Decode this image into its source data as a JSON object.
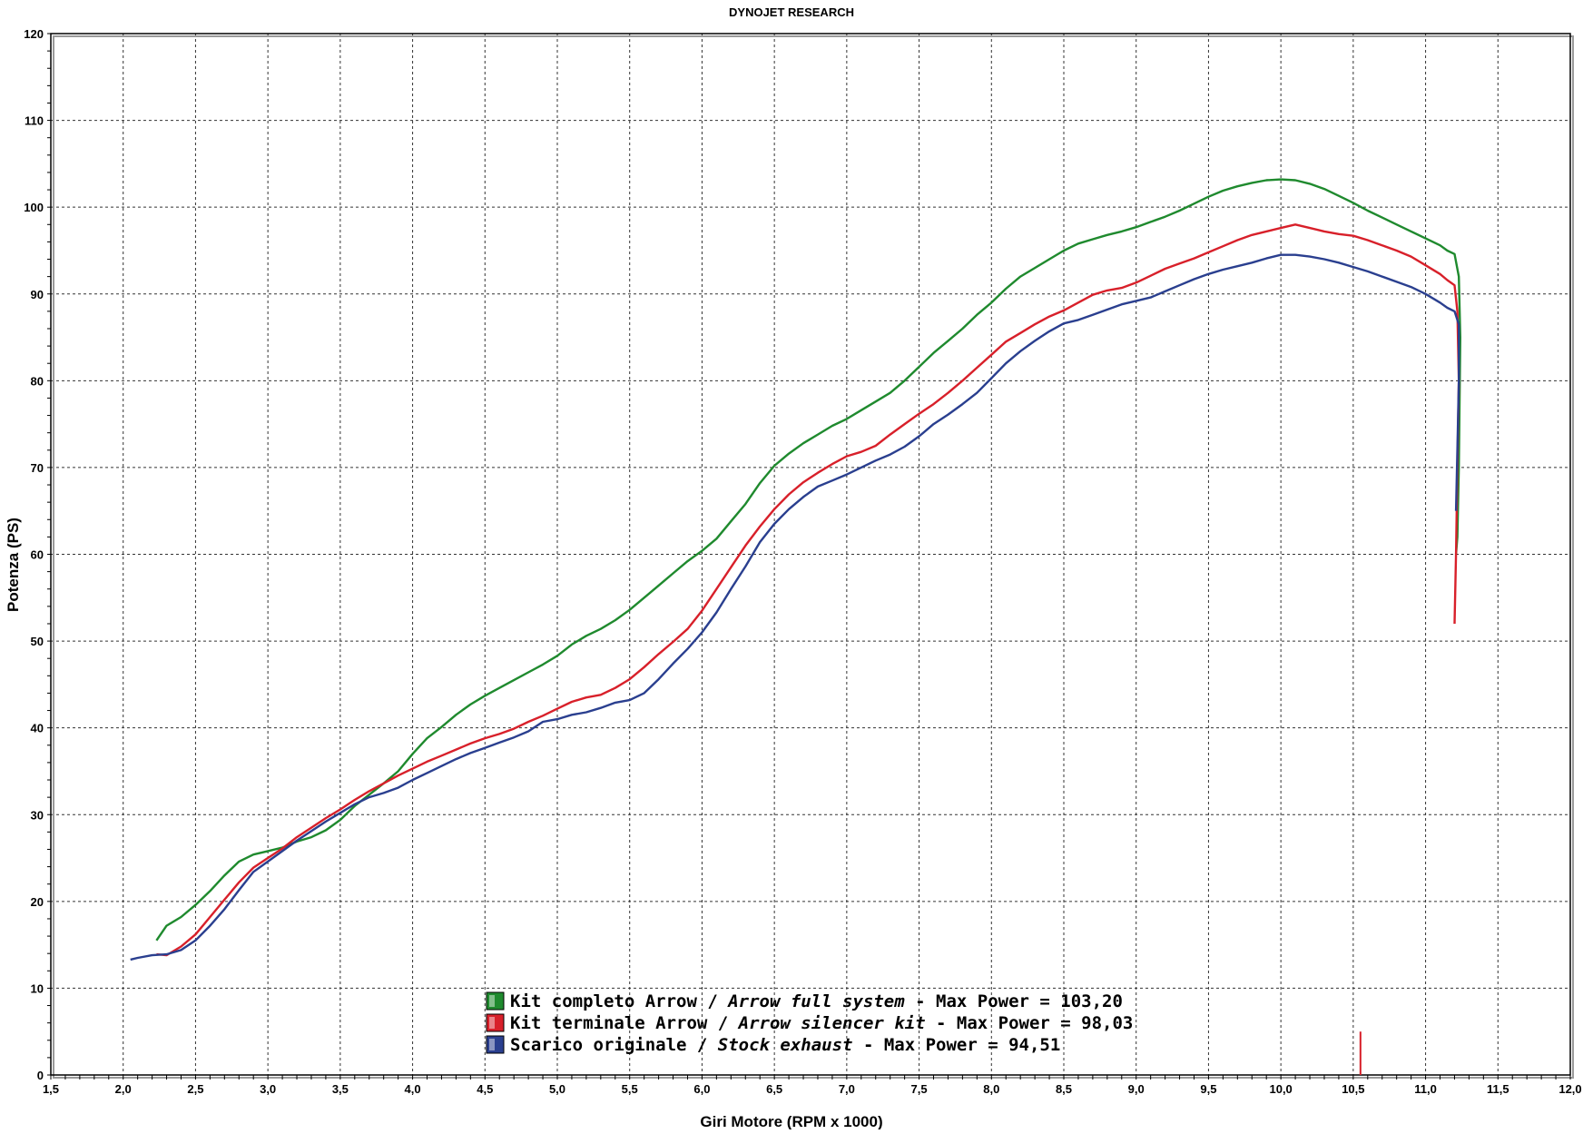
{
  "chart_data": {
    "type": "line",
    "title": "DYNOJET RESEARCH",
    "xlabel": "Giri Motore (RPM x 1000)",
    "ylabel": "Potenza (PS)",
    "xlim": [
      1.5,
      12.0
    ],
    "ylim": [
      0,
      120
    ],
    "x_ticks": [
      "1,5",
      "2,0",
      "2,5",
      "3,0",
      "3,5",
      "4,0",
      "4,5",
      "5,0",
      "5,5",
      "6,0",
      "6,5",
      "7,0",
      "7,5",
      "8,0",
      "8,5",
      "9,0",
      "9,5",
      "10,0",
      "10,5",
      "11,0",
      "11,5",
      "12,0"
    ],
    "y_ticks": [
      "0",
      "10",
      "20",
      "30",
      "40",
      "50",
      "60",
      "70",
      "80",
      "90",
      "100",
      "110",
      "120"
    ],
    "grid": true,
    "legend_position": "bottom-center",
    "series": [
      {
        "name": "Kit completo Arrow / Arrow full system - Max Power = 103,20",
        "color": "#1f8a2e",
        "legend_parts": [
          "Kit completo Arrow / ",
          "Arrow full system",
          " - Max Power = 103,20"
        ],
        "points": [
          [
            2.23,
            15.5
          ],
          [
            2.3,
            17.2
          ],
          [
            2.4,
            18.2
          ],
          [
            2.5,
            19.6
          ],
          [
            2.6,
            21.2
          ],
          [
            2.7,
            23.0
          ],
          [
            2.8,
            24.6
          ],
          [
            2.9,
            25.4
          ],
          [
            3.0,
            25.8
          ],
          [
            3.1,
            26.2
          ],
          [
            3.2,
            26.9
          ],
          [
            3.3,
            27.4
          ],
          [
            3.4,
            28.2
          ],
          [
            3.5,
            29.4
          ],
          [
            3.6,
            31.0
          ],
          [
            3.7,
            32.3
          ],
          [
            3.8,
            33.6
          ],
          [
            3.9,
            35.0
          ],
          [
            4.0,
            37.0
          ],
          [
            4.1,
            38.8
          ],
          [
            4.2,
            40.1
          ],
          [
            4.3,
            41.5
          ],
          [
            4.4,
            42.7
          ],
          [
            4.5,
            43.7
          ],
          [
            4.6,
            44.6
          ],
          [
            4.7,
            45.5
          ],
          [
            4.8,
            46.4
          ],
          [
            4.9,
            47.3
          ],
          [
            5.0,
            48.3
          ],
          [
            5.1,
            49.6
          ],
          [
            5.2,
            50.6
          ],
          [
            5.3,
            51.4
          ],
          [
            5.4,
            52.4
          ],
          [
            5.5,
            53.6
          ],
          [
            5.6,
            55.0
          ],
          [
            5.7,
            56.4
          ],
          [
            5.8,
            57.8
          ],
          [
            5.9,
            59.2
          ],
          [
            6.0,
            60.4
          ],
          [
            6.1,
            61.8
          ],
          [
            6.2,
            63.8
          ],
          [
            6.3,
            65.8
          ],
          [
            6.4,
            68.2
          ],
          [
            6.5,
            70.2
          ],
          [
            6.6,
            71.6
          ],
          [
            6.7,
            72.8
          ],
          [
            6.8,
            73.8
          ],
          [
            6.9,
            74.8
          ],
          [
            7.0,
            75.6
          ],
          [
            7.1,
            76.6
          ],
          [
            7.2,
            77.6
          ],
          [
            7.3,
            78.6
          ],
          [
            7.4,
            80.0
          ],
          [
            7.5,
            81.6
          ],
          [
            7.6,
            83.2
          ],
          [
            7.7,
            84.6
          ],
          [
            7.8,
            86.0
          ],
          [
            7.9,
            87.6
          ],
          [
            8.0,
            89.0
          ],
          [
            8.1,
            90.6
          ],
          [
            8.2,
            92.0
          ],
          [
            8.3,
            93.0
          ],
          [
            8.4,
            94.0
          ],
          [
            8.5,
            95.0
          ],
          [
            8.6,
            95.8
          ],
          [
            8.7,
            96.3
          ],
          [
            8.8,
            96.8
          ],
          [
            8.9,
            97.2
          ],
          [
            9.0,
            97.7
          ],
          [
            9.1,
            98.3
          ],
          [
            9.2,
            98.9
          ],
          [
            9.3,
            99.6
          ],
          [
            9.4,
            100.4
          ],
          [
            9.5,
            101.2
          ],
          [
            9.6,
            101.9
          ],
          [
            9.7,
            102.4
          ],
          [
            9.8,
            102.8
          ],
          [
            9.9,
            103.1
          ],
          [
            10.0,
            103.2
          ],
          [
            10.1,
            103.1
          ],
          [
            10.2,
            102.7
          ],
          [
            10.3,
            102.1
          ],
          [
            10.4,
            101.3
          ],
          [
            10.5,
            100.5
          ],
          [
            10.6,
            99.6
          ],
          [
            10.7,
            98.8
          ],
          [
            10.8,
            98.0
          ],
          [
            10.9,
            97.2
          ],
          [
            11.0,
            96.4
          ],
          [
            11.1,
            95.6
          ],
          [
            11.15,
            95.0
          ],
          [
            11.2,
            94.6
          ],
          [
            11.23,
            92.0
          ],
          [
            11.24,
            85.0
          ],
          [
            11.23,
            70.0
          ],
          [
            11.22,
            62.0
          ],
          [
            11.21,
            60.0
          ]
        ]
      },
      {
        "name": "Kit terminale Arrow / Arrow silencer kit - Max Power = 98,03",
        "color": "#d8202a",
        "legend_parts": [
          "Kit terminale Arrow / ",
          "Arrow silencer kit",
          " - Max Power = 98,03"
        ],
        "points": [
          [
            2.23,
            13.9
          ],
          [
            2.3,
            13.8
          ],
          [
            2.4,
            14.8
          ],
          [
            2.5,
            16.2
          ],
          [
            2.6,
            18.2
          ],
          [
            2.7,
            20.2
          ],
          [
            2.8,
            22.2
          ],
          [
            2.9,
            23.9
          ],
          [
            3.0,
            25.0
          ],
          [
            3.1,
            26.1
          ],
          [
            3.2,
            27.4
          ],
          [
            3.3,
            28.5
          ],
          [
            3.4,
            29.6
          ],
          [
            3.5,
            30.6
          ],
          [
            3.6,
            31.7
          ],
          [
            3.7,
            32.7
          ],
          [
            3.8,
            33.6
          ],
          [
            3.9,
            34.5
          ],
          [
            4.0,
            35.3
          ],
          [
            4.1,
            36.1
          ],
          [
            4.2,
            36.8
          ],
          [
            4.3,
            37.5
          ],
          [
            4.4,
            38.2
          ],
          [
            4.5,
            38.8
          ],
          [
            4.6,
            39.3
          ],
          [
            4.7,
            39.9
          ],
          [
            4.8,
            40.7
          ],
          [
            4.9,
            41.4
          ],
          [
            5.0,
            42.2
          ],
          [
            5.1,
            43.0
          ],
          [
            5.2,
            43.5
          ],
          [
            5.3,
            43.8
          ],
          [
            5.4,
            44.6
          ],
          [
            5.5,
            45.6
          ],
          [
            5.6,
            47.0
          ],
          [
            5.7,
            48.5
          ],
          [
            5.8,
            49.9
          ],
          [
            5.9,
            51.4
          ],
          [
            6.0,
            53.5
          ],
          [
            6.1,
            56.0
          ],
          [
            6.2,
            58.5
          ],
          [
            6.3,
            61.0
          ],
          [
            6.4,
            63.2
          ],
          [
            6.5,
            65.2
          ],
          [
            6.6,
            66.9
          ],
          [
            6.7,
            68.3
          ],
          [
            6.8,
            69.4
          ],
          [
            6.9,
            70.4
          ],
          [
            7.0,
            71.3
          ],
          [
            7.1,
            71.8
          ],
          [
            7.2,
            72.5
          ],
          [
            7.3,
            73.8
          ],
          [
            7.4,
            75.0
          ],
          [
            7.5,
            76.2
          ],
          [
            7.6,
            77.3
          ],
          [
            7.7,
            78.6
          ],
          [
            7.8,
            80.0
          ],
          [
            7.9,
            81.5
          ],
          [
            8.0,
            83.0
          ],
          [
            8.1,
            84.5
          ],
          [
            8.2,
            85.5
          ],
          [
            8.3,
            86.5
          ],
          [
            8.4,
            87.4
          ],
          [
            8.5,
            88.1
          ],
          [
            8.6,
            89.0
          ],
          [
            8.7,
            89.9
          ],
          [
            8.8,
            90.4
          ],
          [
            8.9,
            90.7
          ],
          [
            9.0,
            91.3
          ],
          [
            9.1,
            92.1
          ],
          [
            9.2,
            92.9
          ],
          [
            9.3,
            93.5
          ],
          [
            9.4,
            94.1
          ],
          [
            9.5,
            94.8
          ],
          [
            9.6,
            95.5
          ],
          [
            9.7,
            96.2
          ],
          [
            9.8,
            96.8
          ],
          [
            9.9,
            97.2
          ],
          [
            10.0,
            97.6
          ],
          [
            10.1,
            98.0
          ],
          [
            10.2,
            97.6
          ],
          [
            10.3,
            97.2
          ],
          [
            10.4,
            96.9
          ],
          [
            10.5,
            96.7
          ],
          [
            10.6,
            96.2
          ],
          [
            10.7,
            95.6
          ],
          [
            10.8,
            95.0
          ],
          [
            10.9,
            94.3
          ],
          [
            11.0,
            93.3
          ],
          [
            11.1,
            92.3
          ],
          [
            11.15,
            91.6
          ],
          [
            11.2,
            91.0
          ],
          [
            11.22,
            88.0
          ],
          [
            11.23,
            80.0
          ],
          [
            11.22,
            70.0
          ],
          [
            11.21,
            60.0
          ],
          [
            11.2,
            52.0
          ]
        ]
      },
      {
        "name": "Scarico originale / Stock exhaust - Max Power = 94,51",
        "color": "#2a3f8f",
        "legend_parts": [
          "Scarico originale / ",
          "Stock exhaust",
          " - Max Power = 94,51"
        ],
        "points": [
          [
            2.05,
            13.3
          ],
          [
            2.1,
            13.5
          ],
          [
            2.2,
            13.8
          ],
          [
            2.3,
            13.9
          ],
          [
            2.4,
            14.4
          ],
          [
            2.5,
            15.5
          ],
          [
            2.6,
            17.2
          ],
          [
            2.7,
            19.1
          ],
          [
            2.8,
            21.3
          ],
          [
            2.9,
            23.4
          ],
          [
            3.0,
            24.6
          ],
          [
            3.1,
            25.8
          ],
          [
            3.2,
            27.0
          ],
          [
            3.3,
            28.1
          ],
          [
            3.4,
            29.2
          ],
          [
            3.5,
            30.2
          ],
          [
            3.6,
            31.2
          ],
          [
            3.7,
            32.0
          ],
          [
            3.8,
            32.5
          ],
          [
            3.9,
            33.1
          ],
          [
            4.0,
            34.0
          ],
          [
            4.1,
            34.8
          ],
          [
            4.2,
            35.6
          ],
          [
            4.3,
            36.4
          ],
          [
            4.4,
            37.1
          ],
          [
            4.5,
            37.7
          ],
          [
            4.6,
            38.3
          ],
          [
            4.7,
            38.9
          ],
          [
            4.8,
            39.6
          ],
          [
            4.9,
            40.7
          ],
          [
            5.0,
            41.0
          ],
          [
            5.1,
            41.5
          ],
          [
            5.2,
            41.8
          ],
          [
            5.3,
            42.3
          ],
          [
            5.4,
            42.9
          ],
          [
            5.5,
            43.2
          ],
          [
            5.6,
            44.0
          ],
          [
            5.7,
            45.6
          ],
          [
            5.8,
            47.4
          ],
          [
            5.9,
            49.1
          ],
          [
            6.0,
            51.0
          ],
          [
            6.1,
            53.3
          ],
          [
            6.2,
            56.0
          ],
          [
            6.3,
            58.6
          ],
          [
            6.4,
            61.4
          ],
          [
            6.5,
            63.5
          ],
          [
            6.6,
            65.2
          ],
          [
            6.7,
            66.6
          ],
          [
            6.8,
            67.8
          ],
          [
            6.9,
            68.5
          ],
          [
            7.0,
            69.2
          ],
          [
            7.1,
            70.0
          ],
          [
            7.2,
            70.8
          ],
          [
            7.3,
            71.5
          ],
          [
            7.4,
            72.4
          ],
          [
            7.5,
            73.6
          ],
          [
            7.6,
            75.0
          ],
          [
            7.7,
            76.1
          ],
          [
            7.8,
            77.3
          ],
          [
            7.9,
            78.6
          ],
          [
            8.0,
            80.3
          ],
          [
            8.1,
            82.0
          ],
          [
            8.2,
            83.4
          ],
          [
            8.3,
            84.6
          ],
          [
            8.4,
            85.7
          ],
          [
            8.5,
            86.6
          ],
          [
            8.6,
            87.0
          ],
          [
            8.7,
            87.6
          ],
          [
            8.8,
            88.2
          ],
          [
            8.9,
            88.8
          ],
          [
            9.0,
            89.2
          ],
          [
            9.1,
            89.6
          ],
          [
            9.2,
            90.3
          ],
          [
            9.3,
            91.0
          ],
          [
            9.4,
            91.7
          ],
          [
            9.5,
            92.3
          ],
          [
            9.6,
            92.8
          ],
          [
            9.7,
            93.2
          ],
          [
            9.8,
            93.6
          ],
          [
            9.9,
            94.1
          ],
          [
            10.0,
            94.5
          ],
          [
            10.1,
            94.5
          ],
          [
            10.2,
            94.3
          ],
          [
            10.3,
            94.0
          ],
          [
            10.4,
            93.6
          ],
          [
            10.5,
            93.1
          ],
          [
            10.6,
            92.6
          ],
          [
            10.7,
            92.0
          ],
          [
            10.8,
            91.4
          ],
          [
            10.9,
            90.8
          ],
          [
            11.0,
            90.0
          ],
          [
            11.1,
            89.0
          ],
          [
            11.15,
            88.4
          ],
          [
            11.2,
            88.0
          ],
          [
            11.23,
            86.5
          ],
          [
            11.23,
            80.0
          ],
          [
            11.22,
            72.0
          ],
          [
            11.21,
            65.0
          ]
        ]
      }
    ],
    "annotations": [
      {
        "x": 10.55,
        "y_range": [
          0,
          5
        ],
        "color": "#d8202a"
      }
    ]
  }
}
